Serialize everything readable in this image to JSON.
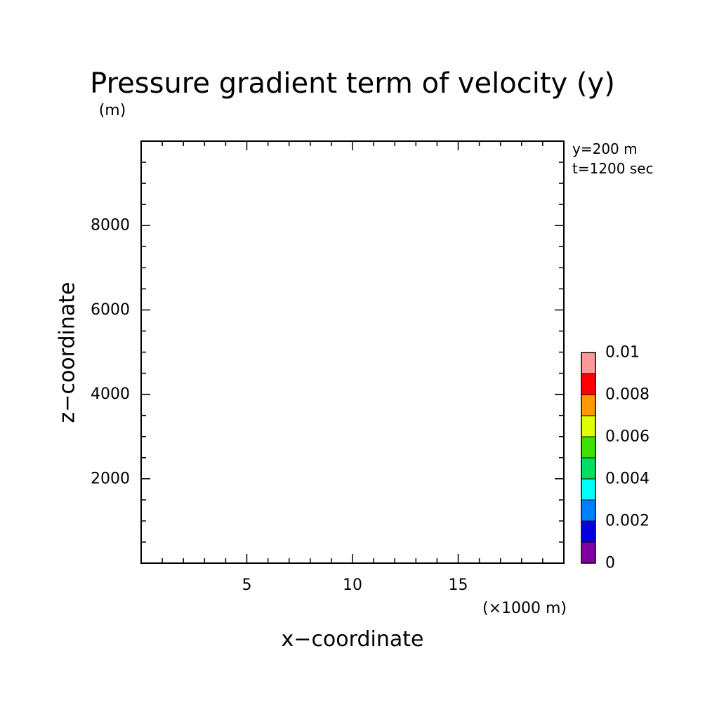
{
  "chart_data": {
    "type": "heatmap",
    "title": "Pressure gradient term of velocity (y)",
    "ylabel": "z−coordinate",
    "yunit": "(m)",
    "xlabel": "x−coordinate",
    "xunit": "(×1000 m)",
    "annotations": [
      "y=200 m",
      "t=1200 sec"
    ],
    "xlim": [
      0,
      20
    ],
    "ylim": [
      0,
      10000
    ],
    "x_major_ticks": [
      5,
      10,
      15
    ],
    "x_tick_labels": [
      "5",
      "10",
      "15"
    ],
    "y_major_ticks": [
      2000,
      4000,
      6000,
      8000
    ],
    "y_tick_labels": [
      "2000",
      "4000",
      "6000",
      "8000"
    ],
    "x_minor_step": 1,
    "y_minor_step": 500,
    "grid": false,
    "data_shown": "none",
    "colorbar": {
      "levels": [
        0,
        0.001,
        0.002,
        0.003,
        0.004,
        0.005,
        0.006,
        0.007,
        0.008,
        0.009,
        0.01
      ],
      "colors": [
        "#8000a0",
        "#0000e0",
        "#0080ff",
        "#00ffff",
        "#00e060",
        "#40e000",
        "#e0ff00",
        "#ff9900",
        "#ff0000",
        "#ff9999"
      ],
      "tick_values": [
        0,
        0.002,
        0.004,
        0.006,
        0.008,
        0.01
      ],
      "tick_labels": [
        "0",
        "0.002",
        "0.004",
        "0.006",
        "0.008",
        "0.01"
      ]
    }
  }
}
